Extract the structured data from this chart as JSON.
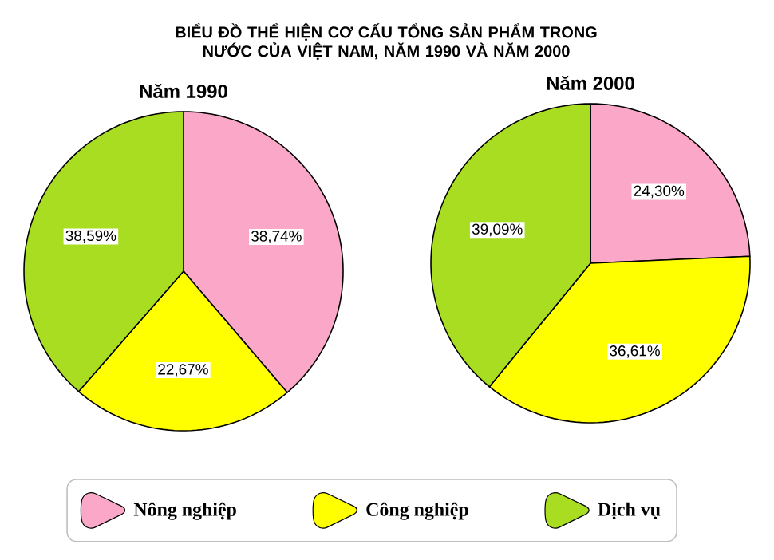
{
  "chart_data": [
    {
      "type": "pie",
      "title": "BIỂU ĐỒ THỂ HIỆN CƠ CẤU TỔNG SẢN PHẨM TRONG NƯỚC CỦA VIỆT NAM, NĂM 1990 VÀ NĂM 2000",
      "subtitle": "Năm 1990",
      "categories": [
        "Nông nghiệp",
        "Công nghiệp",
        "Dịch vụ"
      ],
      "values": [
        38.74,
        22.67,
        38.59
      ],
      "value_labels": [
        "38,74%",
        "22,67%",
        "38,59%"
      ],
      "colors": [
        "#fba8c8",
        "#ffff00",
        "#a8dd22"
      ],
      "legend": "bottom"
    },
    {
      "type": "pie",
      "subtitle": "Năm 2000",
      "categories": [
        null,
        null,
        null
      ],
      "values": [
        24.3,
        36.61,
        39.09
      ],
      "value_labels": [
        "24,30%",
        "36,61%",
        "39,09%"
      ],
      "colors": [
        "#fba8c8",
        "#ffff00",
        "#a8dd22"
      ]
    }
  ]
}
